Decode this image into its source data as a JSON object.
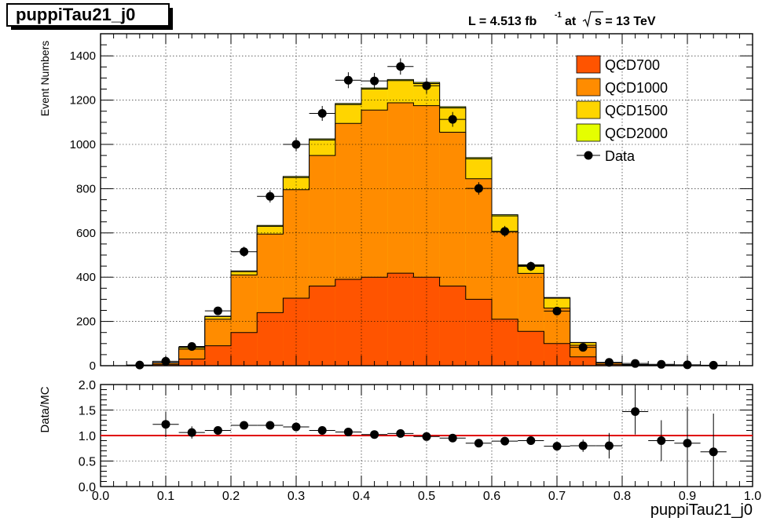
{
  "header": {
    "plot_title": "puppiTau21_j0",
    "lumi_prefix": "L = 4.513 fb",
    "lumi_sup": "-1",
    "lumi_at": "at",
    "lumi_energy": "s = 13 TeV"
  },
  "colors": {
    "QCD700": "#ff5400",
    "QCD1000": "#ff8c00",
    "QCD1500": "#ffd500",
    "QCD2000": "#e5ff00",
    "data": "#000000",
    "ratio_line": "#e00000"
  },
  "chart_data": [
    {
      "type": "stacked-histogram",
      "ylabel": "Event Numbers",
      "xlim": [
        0.0,
        1.0
      ],
      "ylim": [
        0,
        1500
      ],
      "yticks": [
        "0",
        "200",
        "400",
        "600",
        "800",
        "1000",
        "1200",
        "1400"
      ],
      "grid": true,
      "legend_position": "top-right",
      "bin_edges": [
        0.0,
        0.04,
        0.08,
        0.12,
        0.16,
        0.2,
        0.24,
        0.28,
        0.32,
        0.36,
        0.4,
        0.44,
        0.48,
        0.52,
        0.56,
        0.6,
        0.64,
        0.68,
        0.72,
        0.76,
        0.8,
        0.84,
        0.88,
        0.92,
        0.96,
        1.0
      ],
      "series": [
        {
          "name": "QCD700",
          "values": [
            0,
            0,
            5,
            30,
            90,
            150,
            240,
            305,
            360,
            390,
            400,
            418,
            400,
            360,
            300,
            210,
            155,
            100,
            40,
            5,
            2,
            1,
            0,
            0,
            0
          ]
        },
        {
          "name": "QCD1000",
          "values": [
            0,
            0,
            7,
            45,
            120,
            260,
            355,
            490,
            590,
            705,
            755,
            770,
            775,
            695,
            545,
            395,
            262,
            160,
            52,
            7,
            3,
            1,
            0,
            0,
            0
          ]
        },
        {
          "name": "QCD1500",
          "values": [
            0,
            0,
            2,
            7,
            12,
            15,
            35,
            55,
            70,
            85,
            95,
            100,
            100,
            110,
            90,
            72,
            35,
            45,
            12,
            1,
            0,
            0,
            0,
            0,
            0
          ]
        },
        {
          "name": "QCD2000",
          "values": [
            0,
            0,
            0,
            1,
            2,
            3,
            4,
            5,
            5,
            5,
            5,
            5,
            5,
            5,
            5,
            5,
            4,
            3,
            1,
            0,
            0,
            0,
            0,
            0,
            0
          ]
        }
      ],
      "data": {
        "name": "Data",
        "x": [
          0.06,
          0.1,
          0.14,
          0.18,
          0.22,
          0.26,
          0.3,
          0.34,
          0.38,
          0.42,
          0.46,
          0.5,
          0.54,
          0.58,
          0.62,
          0.66,
          0.7,
          0.74,
          0.78,
          0.82,
          0.86,
          0.9,
          0.94
        ],
        "y": [
          3,
          20,
          87,
          248,
          515,
          765,
          1000,
          1140,
          1290,
          1287,
          1352,
          1265,
          1113,
          801,
          607,
          449,
          247,
          83,
          15,
          10,
          6,
          4,
          2
        ]
      },
      "legend": [
        "QCD700",
        "QCD1000",
        "QCD1500",
        "QCD2000",
        "Data"
      ]
    },
    {
      "type": "scatter",
      "xlabel": "puppiTau21_j0",
      "ylabel": "Data/MC",
      "xlim": [
        0.0,
        1.0
      ],
      "ylim": [
        0.0,
        2.0
      ],
      "xticks": [
        "0.0",
        "0.1",
        "0.2",
        "0.3",
        "0.4",
        "0.5",
        "0.6",
        "0.7",
        "0.8",
        "0.9",
        "1.0"
      ],
      "yticks": [
        "0.0",
        "0.5",
        "1.0",
        "1.5",
        "2.0"
      ],
      "grid": true,
      "reference_line": 1.0,
      "x": [
        0.1,
        0.14,
        0.18,
        0.22,
        0.26,
        0.3,
        0.34,
        0.38,
        0.42,
        0.46,
        0.5,
        0.54,
        0.58,
        0.62,
        0.66,
        0.7,
        0.74,
        0.78,
        0.82,
        0.86,
        0.9,
        0.94
      ],
      "y": [
        1.22,
        1.06,
        1.1,
        1.2,
        1.2,
        1.17,
        1.1,
        1.07,
        1.02,
        1.04,
        0.98,
        0.95,
        0.85,
        0.89,
        0.9,
        0.79,
        0.8,
        0.8,
        1.47,
        0.9,
        0.85,
        0.68
      ],
      "err": [
        0.25,
        0.12,
        0.07,
        0.05,
        0.04,
        0.04,
        0.03,
        0.03,
        0.03,
        0.03,
        0.03,
        0.03,
        0.04,
        0.04,
        0.05,
        0.06,
        0.12,
        0.25,
        0.45,
        0.4,
        0.7,
        0.75
      ]
    }
  ]
}
